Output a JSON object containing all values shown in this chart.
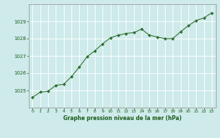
{
  "hours": [
    0,
    1,
    2,
    3,
    4,
    5,
    6,
    7,
    8,
    9,
    10,
    11,
    12,
    13,
    14,
    15,
    16,
    17,
    18,
    19,
    20,
    21,
    22,
    23
  ],
  "pressure": [
    1024.6,
    1024.9,
    1024.95,
    1025.3,
    1025.35,
    1025.8,
    1026.35,
    1026.95,
    1027.3,
    1027.7,
    1028.05,
    1028.2,
    1028.3,
    1028.35,
    1028.55,
    1028.2,
    1028.1,
    1028.0,
    1028.0,
    1028.4,
    1028.75,
    1029.05,
    1029.2,
    1029.5
  ],
  "line_color": "#2d6e2d",
  "marker": "D",
  "marker_size": 2.2,
  "background_color": "#ceeaea",
  "grid_color": "#ffffff",
  "title": "Graphe pression niveau de la mer (hPa)",
  "title_color": "#1a5c1a",
  "tick_label_color": "#1a5c1a",
  "ylim": [
    1024.0,
    1030.0
  ],
  "xlim": [
    -0.5,
    23.5
  ],
  "yticks": [
    1025,
    1026,
    1027,
    1028,
    1029
  ],
  "xticks": [
    0,
    1,
    2,
    3,
    4,
    5,
    6,
    7,
    8,
    9,
    10,
    11,
    12,
    13,
    14,
    15,
    16,
    17,
    18,
    19,
    20,
    21,
    22,
    23
  ]
}
